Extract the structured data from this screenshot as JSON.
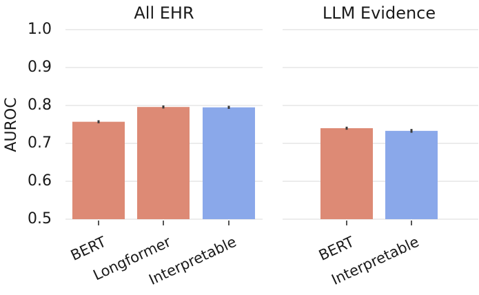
{
  "chart_data": {
    "type": "bar",
    "ylabel": "AUROC",
    "ylim": [
      0.5,
      1.0
    ],
    "yticks": [
      "0.5",
      "0.6",
      "0.7",
      "0.8",
      "0.9",
      "1.0"
    ],
    "grid": true,
    "colors": {
      "orange": "#DD8A75",
      "blue": "#8AA8EA",
      "error": "#3b3b3b"
    },
    "panels": [
      {
        "title": "All EHR",
        "categories": [
          "BERT",
          "Longformer",
          "Interpretable"
        ],
        "values": [
          0.757,
          0.796,
          0.795
        ],
        "errors": [
          0.004,
          0.004,
          0.004
        ],
        "bar_colors": [
          "orange",
          "orange",
          "blue"
        ]
      },
      {
        "title": "LLM Evidence",
        "categories": [
          "BERT",
          "Interpretable"
        ],
        "values": [
          0.74,
          0.733
        ],
        "errors": [
          0.004,
          0.005
        ],
        "bar_colors": [
          "orange",
          "blue"
        ]
      }
    ]
  }
}
